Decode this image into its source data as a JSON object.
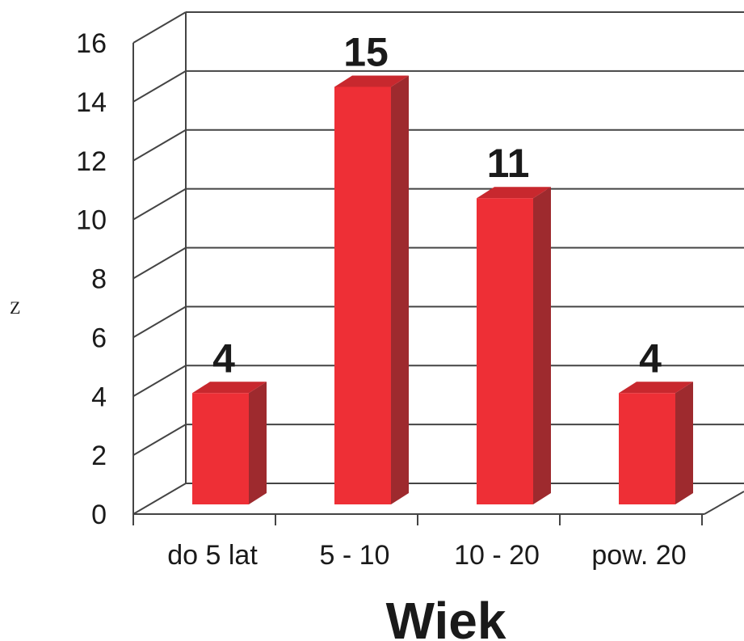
{
  "chart_data": {
    "type": "bar",
    "categories": [
      "do 5 lat",
      "5 - 10",
      "10 - 20",
      "pow. 20"
    ],
    "values": [
      4,
      15,
      11,
      4
    ],
    "xlabel": "Wiek",
    "ylabel": "Z",
    "ylim": [
      0,
      16
    ],
    "yticks": [
      0,
      2,
      4,
      6,
      8,
      10,
      12,
      14,
      16
    ],
    "data_labels": true,
    "grid": true,
    "legend": "none",
    "style": "3d",
    "colors": {
      "bar_front": "#ee2f36",
      "bar_side": "#9e2a2e",
      "bar_top": "#c8282e",
      "grid": "#444444"
    }
  }
}
